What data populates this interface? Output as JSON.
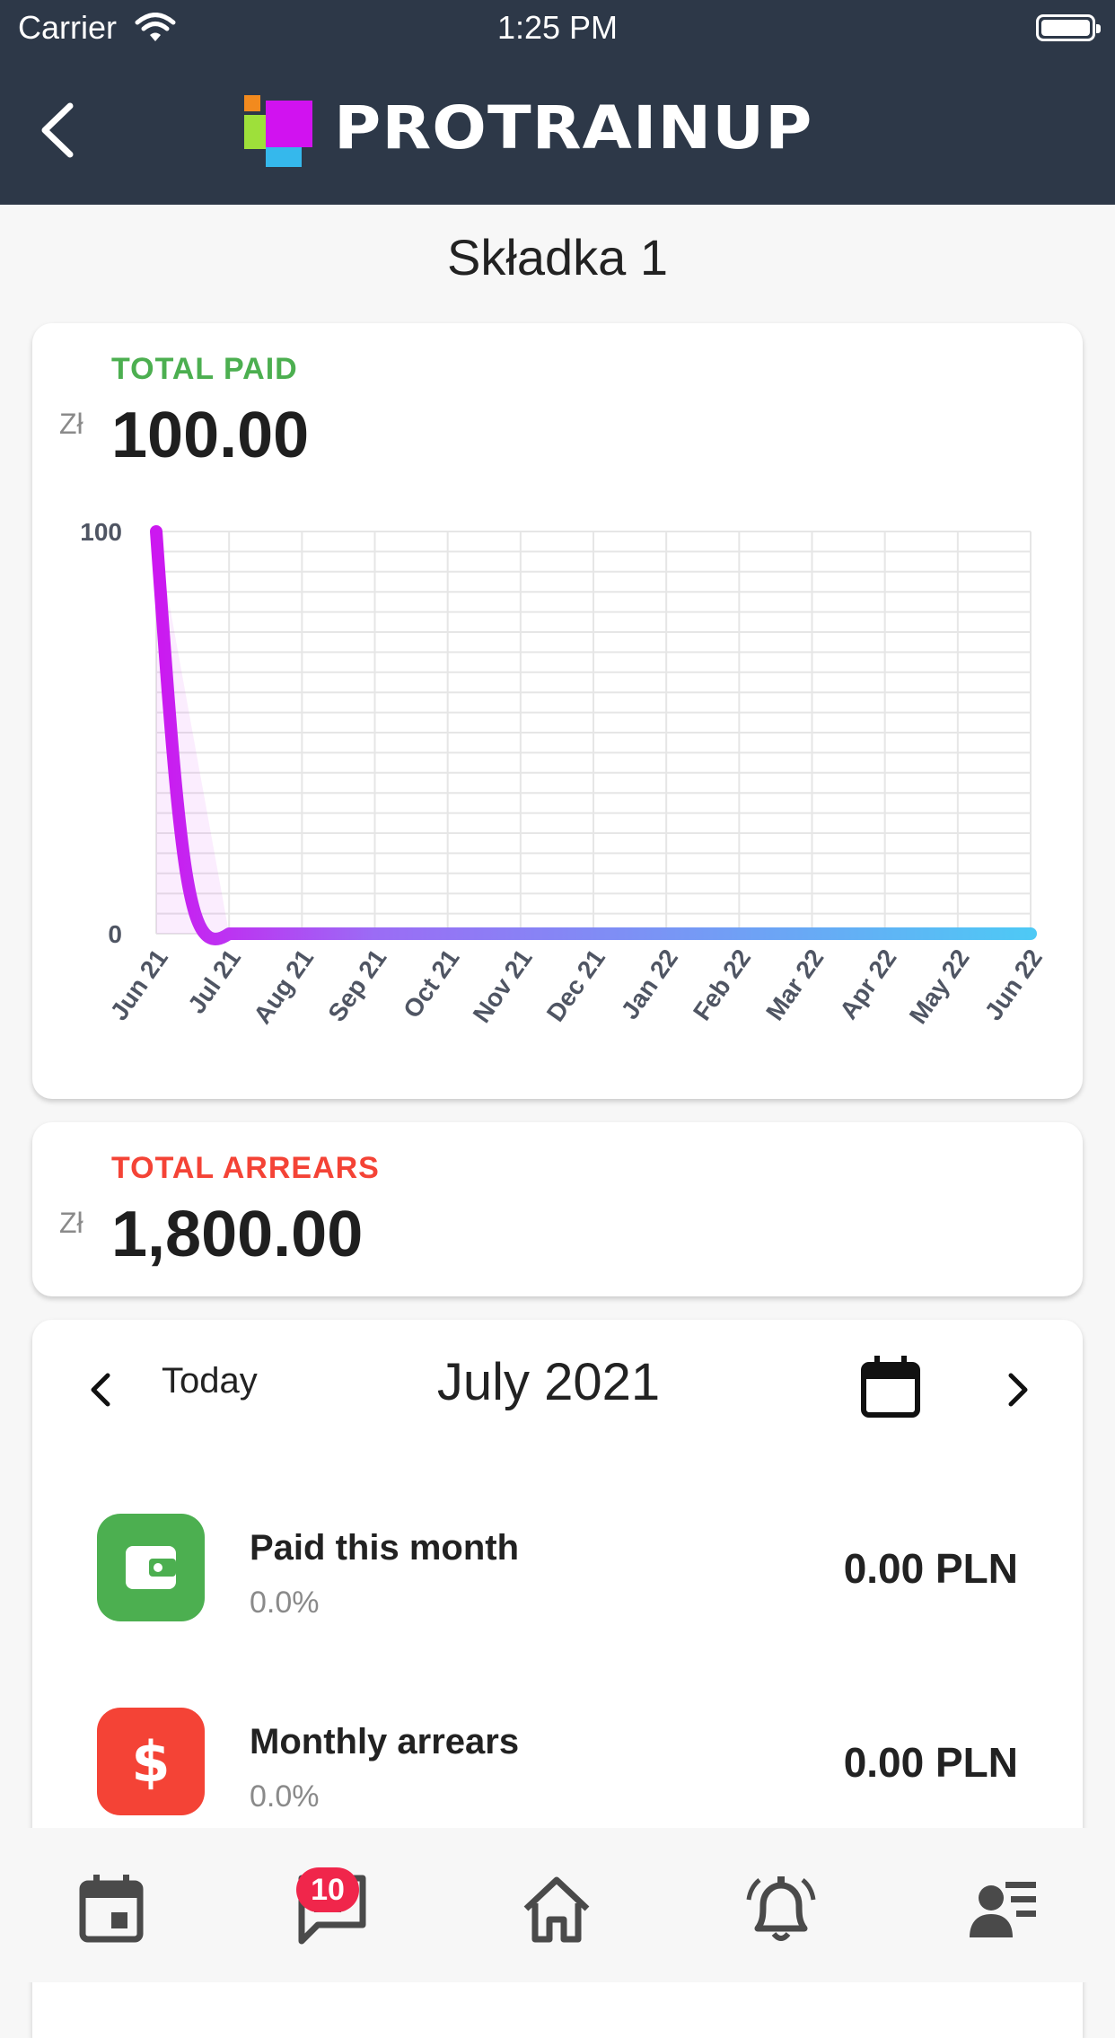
{
  "status_bar": {
    "carrier": "Carrier",
    "time": "1:25 PM"
  },
  "nav": {
    "brand": "PROTRAINUP"
  },
  "page": {
    "title": "Składka 1"
  },
  "total_paid": {
    "label": "TOTAL PAID",
    "currency": "Zł",
    "amount": "100.00"
  },
  "total_arrears": {
    "label": "TOTAL ARREARS",
    "currency": "Zł",
    "amount": "1,800.00"
  },
  "month_nav": {
    "today_label": "Today",
    "month": "July 2021"
  },
  "summary": [
    {
      "title": "Paid this month",
      "percent": "0.0%",
      "value": "0.00 PLN",
      "icon": "wallet-icon",
      "color": "#4caf50"
    },
    {
      "title": "Monthly arrears",
      "percent": "0.0%",
      "value": "0.00 PLN",
      "icon": "dollar-icon",
      "color": "#f44336"
    }
  ],
  "tabbar": {
    "messages_badge": "10",
    "tabs": [
      "calendar-icon",
      "messages-icon",
      "home-icon",
      "bell-icon",
      "profile-icon"
    ]
  },
  "colors": {
    "header_bg": "#2d3848",
    "paid_label": "#4caf50",
    "arrears_label": "#f44336",
    "line_start": "#cc18f0",
    "line_end": "#4ec9f5"
  },
  "chart_data": {
    "type": "line",
    "categories": [
      "Jun 21",
      "Jul 21",
      "Aug 21",
      "Sep 21",
      "Oct 21",
      "Nov 21",
      "Dec 21",
      "Jan 22",
      "Feb 22",
      "Mar 22",
      "Apr 22",
      "May 22",
      "Jun 22"
    ],
    "values": [
      100,
      0,
      0,
      0,
      0,
      0,
      0,
      0,
      0,
      0,
      0,
      0,
      0
    ],
    "y_ticks": [
      "100",
      "0"
    ],
    "ylim": [
      0,
      100
    ],
    "grid": true
  }
}
